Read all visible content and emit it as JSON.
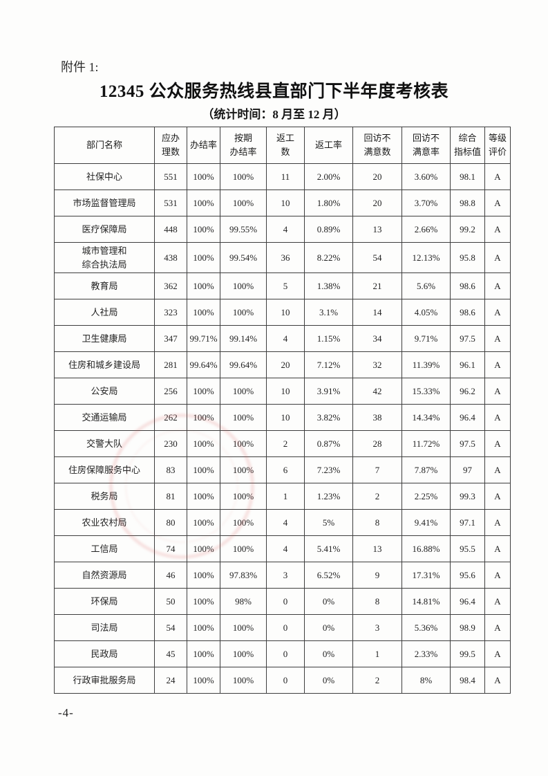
{
  "page": {
    "attachment_label": "附件 1:",
    "title": "12345 公众服务热线县直部门下半年度考核表",
    "subtitle": "（统计时间：8 月至 12 月）",
    "page_number": "-4-"
  },
  "stamp": {
    "color": "#d85a5a",
    "shape": "faint-circular-seal"
  },
  "table": {
    "columns": [
      "部门名称",
      "应办\n理数",
      "办结率",
      "按期\n办结率",
      "返工\n数",
      "返工率",
      "回访不\n满意数",
      "回访不\n满意率",
      "综合\n指标值",
      "等级\n评价"
    ],
    "rows": [
      [
        "社保中心",
        "551",
        "100%",
        "100%",
        "11",
        "2.00%",
        "20",
        "3.60%",
        "98.1",
        "A"
      ],
      [
        "市场监督管理局",
        "531",
        "100%",
        "100%",
        "10",
        "1.80%",
        "20",
        "3.70%",
        "98.8",
        "A"
      ],
      [
        "医疗保障局",
        "448",
        "100%",
        "99.55%",
        "4",
        "0.89%",
        "13",
        "2.66%",
        "99.2",
        "A"
      ],
      [
        "城市管理和\n综合执法局",
        "438",
        "100%",
        "99.54%",
        "36",
        "8.22%",
        "54",
        "12.13%",
        "95.8",
        "A"
      ],
      [
        "教育局",
        "362",
        "100%",
        "100%",
        "5",
        "1.38%",
        "21",
        "5.6%",
        "98.6",
        "A"
      ],
      [
        "人社局",
        "323",
        "100%",
        "100%",
        "10",
        "3.1%",
        "14",
        "4.05%",
        "98.6",
        "A"
      ],
      [
        "卫生健康局",
        "347",
        "99.71%",
        "99.14%",
        "4",
        "1.15%",
        "34",
        "9.71%",
        "97.5",
        "A"
      ],
      [
        "住房和城乡建设局",
        "281",
        "99.64%",
        "99.64%",
        "20",
        "7.12%",
        "32",
        "11.39%",
        "96.1",
        "A"
      ],
      [
        "公安局",
        "256",
        "100%",
        "100%",
        "10",
        "3.91%",
        "42",
        "15.33%",
        "96.2",
        "A"
      ],
      [
        "交通运输局",
        "262",
        "100%",
        "100%",
        "10",
        "3.82%",
        "38",
        "14.34%",
        "96.4",
        "A"
      ],
      [
        "交警大队",
        "230",
        "100%",
        "100%",
        "2",
        "0.87%",
        "28",
        "11.72%",
        "97.5",
        "A"
      ],
      [
        "住房保障服务中心",
        "83",
        "100%",
        "100%",
        "6",
        "7.23%",
        "7",
        "7.87%",
        "97",
        "A"
      ],
      [
        "税务局",
        "81",
        "100%",
        "100%",
        "1",
        "1.23%",
        "2",
        "2.25%",
        "99.3",
        "A"
      ],
      [
        "农业农村局",
        "80",
        "100%",
        "100%",
        "4",
        "5%",
        "8",
        "9.41%",
        "97.1",
        "A"
      ],
      [
        "工信局",
        "74",
        "100%",
        "100%",
        "4",
        "5.41%",
        "13",
        "16.88%",
        "95.5",
        "A"
      ],
      [
        "自然资源局",
        "46",
        "100%",
        "97.83%",
        "3",
        "6.52%",
        "9",
        "17.31%",
        "95.6",
        "A"
      ],
      [
        "环保局",
        "50",
        "100%",
        "98%",
        "0",
        "0%",
        "8",
        "14.81%",
        "96.4",
        "A"
      ],
      [
        "司法局",
        "54",
        "100%",
        "100%",
        "0",
        "0%",
        "3",
        "5.36%",
        "98.9",
        "A"
      ],
      [
        "民政局",
        "45",
        "100%",
        "100%",
        "0",
        "0%",
        "1",
        "2.33%",
        "99.5",
        "A"
      ],
      [
        "行政审批服务局",
        "24",
        "100%",
        "100%",
        "0",
        "0%",
        "2",
        "8%",
        "98.4",
        "A"
      ]
    ]
  }
}
